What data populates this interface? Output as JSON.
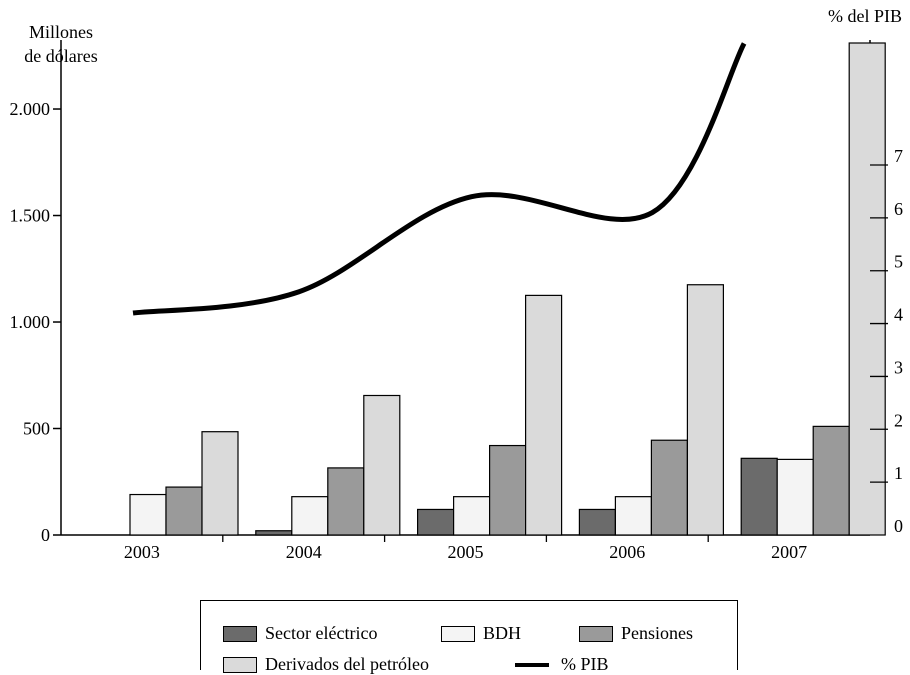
{
  "chart_data": {
    "type": "bar",
    "categories": [
      "2003",
      "2004",
      "2005",
      "2006",
      "2007"
    ],
    "series": [
      {
        "name": "Sector eléctrico",
        "color": "#6b6b6b",
        "values": [
          0,
          20,
          120,
          120,
          360
        ]
      },
      {
        "name": "BDH",
        "color": "#f4f4f4",
        "values": [
          190,
          180,
          180,
          180,
          355
        ]
      },
      {
        "name": "Pensiones",
        "color": "#9a9a9a",
        "values": [
          225,
          315,
          420,
          445,
          510
        ]
      },
      {
        "name": "Derivados del petróleo",
        "color": "#dadada",
        "values": [
          485,
          655,
          1125,
          1175,
          2310
        ]
      }
    ],
    "line_series": {
      "name": "% PIB",
      "axis": "right",
      "values": [
        4.2,
        4.6,
        6.4,
        6.1,
        9.3
      ]
    },
    "ylabel": "Millones\nde dólares",
    "ylabel_lines": [
      "Millones",
      "de dólares"
    ],
    "ylabel_right": "% del PIB",
    "ylim": [
      0,
      2310
    ],
    "yticks": [
      0,
      500,
      1000,
      1500,
      2000
    ],
    "ytick_labels": [
      "0",
      "500",
      "1.000",
      "1.500",
      "2.000"
    ],
    "y2ticks": [
      0,
      1,
      2,
      3,
      4,
      5,
      6,
      7
    ],
    "y2tick_labels": [
      "0",
      "1",
      "2",
      "3",
      "4",
      "5",
      "6",
      "7"
    ],
    "legend_position": "bottom",
    "grid": false
  }
}
